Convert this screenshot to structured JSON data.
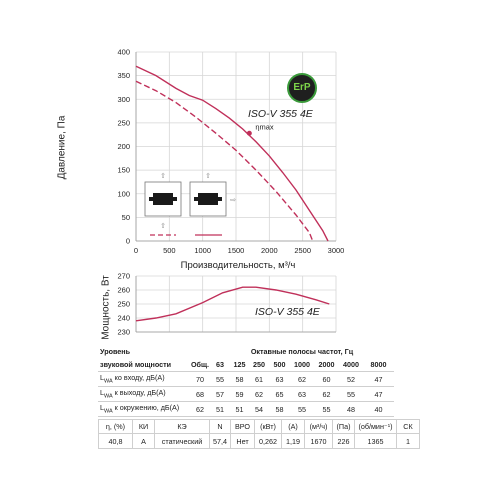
{
  "chart_data": [
    {
      "type": "line",
      "title": "",
      "xlabel": "Производительность, м³/ч",
      "ylabel": "Давление, Па",
      "xlim": [
        0,
        3000
      ],
      "ylim": [
        0,
        400
      ],
      "xticks": [
        "0",
        "500",
        "1000",
        "1500",
        "2000",
        "2500",
        "3000"
      ],
      "yticks": [
        "0",
        "50",
        "100",
        "150",
        "200",
        "250",
        "300",
        "350",
        "400"
      ],
      "grid": true,
      "annotations": [
        "ISO-V 355 4E",
        "ηmax"
      ],
      "max_efficiency_point": [
        1700,
        228
      ],
      "series": [
        {
          "style": "solid",
          "color": "#c0305a",
          "points": [
            [
              0,
              370
            ],
            [
              300,
              350
            ],
            [
              600,
              323
            ],
            [
              800,
              308
            ],
            [
              1000,
              298
            ],
            [
              1200,
              280
            ],
            [
              1400,
              260
            ],
            [
              1600,
              237
            ],
            [
              1800,
              210
            ],
            [
              2000,
              180
            ],
            [
              2200,
              145
            ],
            [
              2400,
              108
            ],
            [
              2600,
              65
            ],
            [
              2800,
              22
            ],
            [
              2880,
              0
            ]
          ]
        },
        {
          "style": "dashed",
          "color": "#c0305a",
          "points": [
            [
              0,
              338
            ],
            [
              300,
              318
            ],
            [
              600,
              293
            ],
            [
              900,
              262
            ],
            [
              1200,
              228
            ],
            [
              1500,
              192
            ],
            [
              1800,
              150
            ],
            [
              2100,
              105
            ],
            [
              2400,
              55
            ],
            [
              2600,
              18
            ],
            [
              2650,
              0
            ]
          ]
        }
      ]
    },
    {
      "type": "line",
      "title": "",
      "xlabel": "",
      "ylabel": "Мощность, Вт",
      "xlim": [
        0,
        3000
      ],
      "ylim": [
        230,
        270
      ],
      "yticks": [
        "230",
        "240",
        "250",
        "260",
        "270"
      ],
      "grid": true,
      "annotations": [
        "ISO-V 355 4E"
      ],
      "series": [
        {
          "style": "solid",
          "color": "#c0305a",
          "points": [
            [
              0,
              238
            ],
            [
              300,
              240
            ],
            [
              600,
              243
            ],
            [
              1000,
              251
            ],
            [
              1300,
              258
            ],
            [
              1600,
              262
            ],
            [
              1800,
              262
            ],
            [
              2100,
              260
            ],
            [
              2400,
              257
            ],
            [
              2700,
              253
            ],
            [
              2900,
              250
            ]
          ]
        }
      ]
    }
  ],
  "sound_table": {
    "title_line1": "Уровень",
    "title_line2": "звуковой мощности",
    "octave_header": "Октавные полосы частот, Гц",
    "columns": [
      "Общ.",
      "63",
      "125",
      "250",
      "500",
      "1000",
      "2000",
      "4000",
      "8000"
    ],
    "rows": [
      {
        "label_sub": "WA",
        "label_rest": " ко входу, дБ(А)",
        "values": [
          "70",
          "55",
          "58",
          "61",
          "63",
          "62",
          "60",
          "52",
          "47"
        ]
      },
      {
        "label_sub": "WA",
        "label_rest": " к выходу, дБ(А)",
        "values": [
          "68",
          "57",
          "59",
          "62",
          "65",
          "63",
          "62",
          "55",
          "47"
        ]
      },
      {
        "label_sub": "WA",
        "label_rest": " к окружению, дБ(А)",
        "values": [
          "62",
          "51",
          "51",
          "54",
          "58",
          "55",
          "55",
          "48",
          "40"
        ]
      }
    ]
  },
  "motor_table": {
    "headers": [
      "η, (%)",
      "КИ",
      "КЭ",
      "N",
      "ВРО",
      "(кВт)",
      "(А)",
      "(м³/ч)",
      "(Па)",
      "(об/мин⁻¹)",
      "СК"
    ],
    "values": [
      "40,8",
      "A",
      "статический",
      "57,4",
      "Нет",
      "0,262",
      "1,19",
      "1670",
      "226",
      "1365",
      "1"
    ]
  },
  "badge": {
    "text": "ErP"
  },
  "colors": {
    "curve": "#c0305a",
    "grid": "#d6d6d6",
    "badge_ring": "#3a9a3a"
  }
}
